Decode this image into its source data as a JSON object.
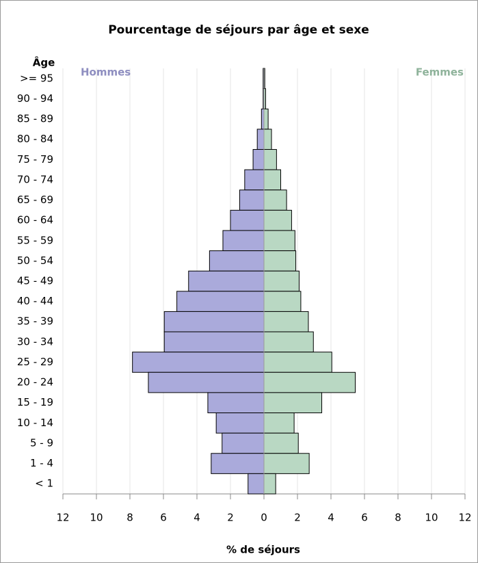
{
  "chart_data": {
    "type": "pyramid",
    "title": "Pourcentage de séjours par âge et sexe",
    "category_label": "Âge",
    "xlabel": "% de séjours",
    "categories": [
      ">= 95",
      "90 - 94",
      "85 - 89",
      "80 - 84",
      "75 - 79",
      "70 - 74",
      "65 - 69",
      "60 - 64",
      "55 - 59",
      "50 - 54",
      "45 - 49",
      "40 - 44",
      "35 - 39",
      "30 - 34",
      "25 - 29",
      "20 - 24",
      "15 - 19",
      "10 - 14",
      "5 - 9",
      "1 - 4",
      "< 1"
    ],
    "series": [
      {
        "name": "Hommes",
        "color": "#aaaadb",
        "label_color": "#8e8ec0",
        "side": "left",
        "values": [
          0.05,
          0.05,
          0.15,
          0.4,
          0.65,
          1.15,
          1.45,
          2.0,
          2.45,
          3.25,
          4.5,
          5.2,
          5.95,
          5.95,
          7.85,
          6.9,
          3.35,
          2.85,
          2.5,
          3.15,
          0.95
        ]
      },
      {
        "name": "Femmes",
        "color": "#b9d8c3",
        "label_color": "#8fb39b",
        "side": "right",
        "values": [
          0.05,
          0.1,
          0.25,
          0.45,
          0.75,
          1.0,
          1.35,
          1.65,
          1.85,
          1.9,
          2.1,
          2.2,
          2.65,
          2.95,
          4.05,
          5.45,
          3.45,
          1.8,
          2.05,
          2.7,
          0.7
        ]
      }
    ],
    "xlim": [
      -12,
      12
    ],
    "xticks": [
      {
        "value": -12,
        "label": "12"
      },
      {
        "value": -10,
        "label": "10"
      },
      {
        "value": -8,
        "label": "8"
      },
      {
        "value": -6,
        "label": "6"
      },
      {
        "value": -4,
        "label": "4"
      },
      {
        "value": -2,
        "label": "2"
      },
      0,
      2,
      4,
      6,
      8,
      10,
      12
    ],
    "grid": true
  }
}
